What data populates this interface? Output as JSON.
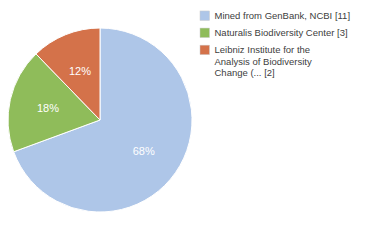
{
  "chart_data": {
    "type": "pie",
    "categories": [
      "Mined from GenBank, NCBI [11]",
      "Naturalis Biodiversity Center [3]",
      "Leibniz Institute for the\nAnalysis of Biodiversity\nChange (... [2]"
    ],
    "values": [
      68,
      18,
      12
    ],
    "value_labels": [
      "68%",
      "18%",
      "12%"
    ],
    "colors": [
      "#aec6e8",
      "#8fbc5a",
      "#d4724a"
    ],
    "data_labels": true,
    "legend": "right"
  }
}
